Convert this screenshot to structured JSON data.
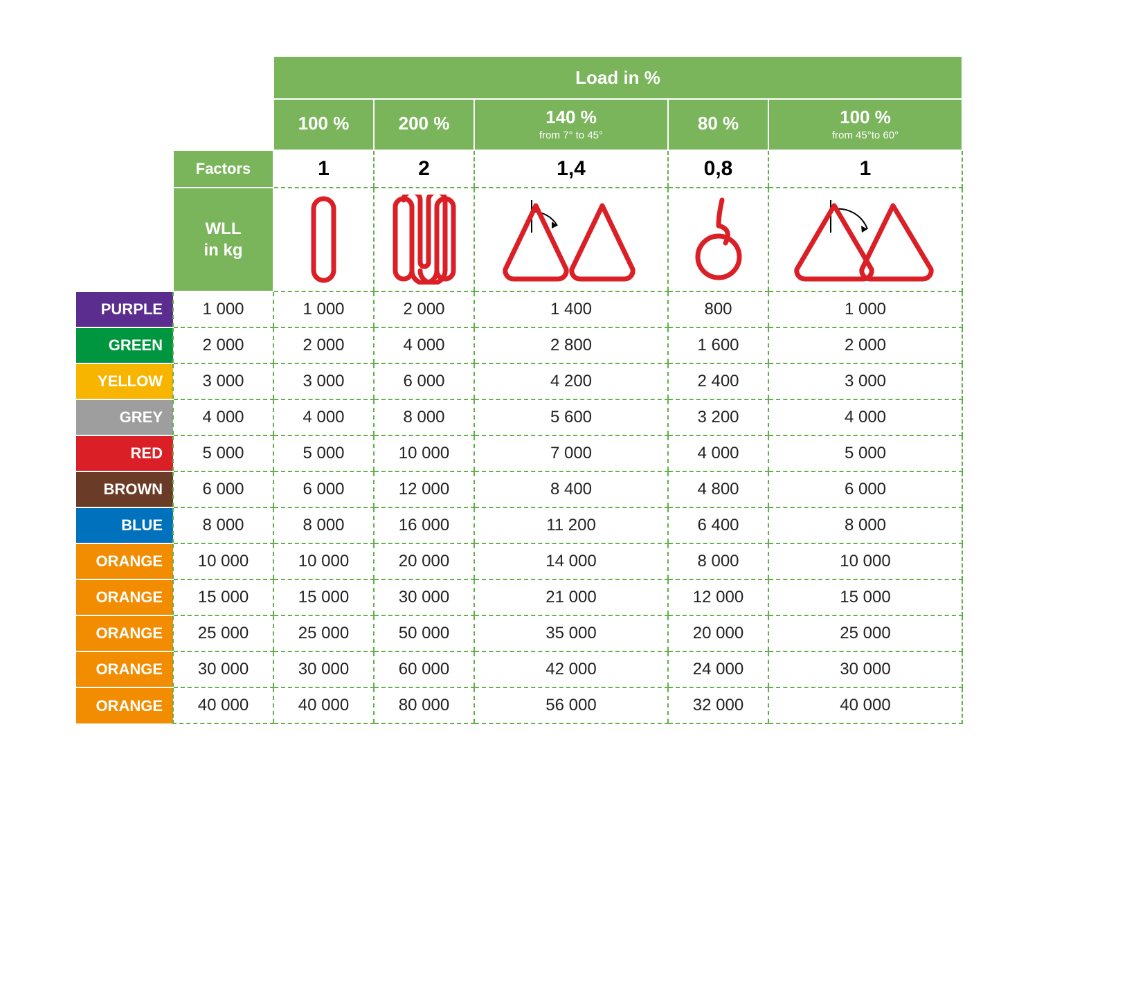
{
  "header": {
    "title": "Load in %",
    "columns": [
      {
        "pct": "100 %",
        "sub": ""
      },
      {
        "pct": "200 %",
        "sub": ""
      },
      {
        "pct": "140 %",
        "sub": "from 7° to 45°"
      },
      {
        "pct": "80 %",
        "sub": ""
      },
      {
        "pct": "100 %",
        "sub": "from 45°to 60°"
      }
    ],
    "factors_label": "Factors",
    "factors": [
      "1",
      "2",
      "1,4",
      "0,8",
      "1"
    ],
    "wll_label_l1": "WLL",
    "wll_label_l2": "in kg"
  },
  "sling_stroke": "#da1f26",
  "sling_stroke_width": 7,
  "rows": [
    {
      "label": "PURPLE",
      "bg": "#5a2d8e",
      "wll": "1 000",
      "values": [
        "1 000",
        "2 000",
        "1 400",
        "800",
        "1 000"
      ]
    },
    {
      "label": "GREEN",
      "bg": "#009640",
      "wll": "2 000",
      "values": [
        "2 000",
        "4 000",
        "2 800",
        "1 600",
        "2 000"
      ]
    },
    {
      "label": "YELLOW",
      "bg": "#f7b500",
      "wll": "3 000",
      "values": [
        "3 000",
        "6 000",
        "4 200",
        "2 400",
        "3 000"
      ]
    },
    {
      "label": "GREY",
      "bg": "#9e9e9e",
      "wll": "4 000",
      "values": [
        "4 000",
        "8 000",
        "5 600",
        "3 200",
        "4 000"
      ]
    },
    {
      "label": "RED",
      "bg": "#da1f26",
      "wll": "5 000",
      "values": [
        "5 000",
        "10 000",
        "7 000",
        "4 000",
        "5 000"
      ]
    },
    {
      "label": "BROWN",
      "bg": "#6a3b27",
      "wll": "6 000",
      "values": [
        "6 000",
        "12 000",
        "8 400",
        "4 800",
        "6 000"
      ]
    },
    {
      "label": "BLUE",
      "bg": "#0071bc",
      "wll": "8 000",
      "values": [
        "8 000",
        "16 000",
        "11 200",
        "6 400",
        "8 000"
      ]
    },
    {
      "label": "ORANGE",
      "bg": "#f28c00",
      "wll": "10 000",
      "values": [
        "10 000",
        "20 000",
        "14 000",
        "8 000",
        "10 000"
      ]
    },
    {
      "label": "ORANGE",
      "bg": "#f28c00",
      "wll": "15 000",
      "values": [
        "15 000",
        "30 000",
        "21 000",
        "12 000",
        "15 000"
      ]
    },
    {
      "label": "ORANGE",
      "bg": "#f28c00",
      "wll": "25 000",
      "values": [
        "25 000",
        "50 000",
        "35 000",
        "20 000",
        "25 000"
      ]
    },
    {
      "label": "ORANGE",
      "bg": "#f28c00",
      "wll": "30 000",
      "values": [
        "30 000",
        "60 000",
        "42 000",
        "24 000",
        "30 000"
      ]
    },
    {
      "label": "ORANGE",
      "bg": "#f28c00",
      "wll": "40 000",
      "values": [
        "40 000",
        "80 000",
        "56 000",
        "32 000",
        "40 000"
      ]
    }
  ],
  "dash_color": "#63b04b",
  "header_bg": "#7ab55c"
}
